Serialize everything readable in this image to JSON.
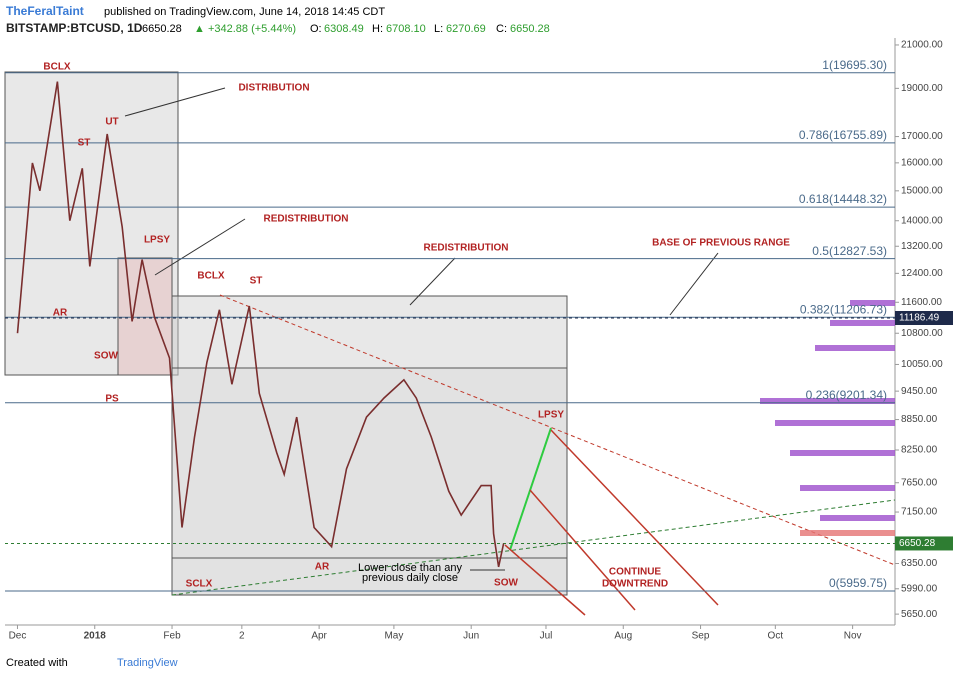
{
  "header": {
    "author": "TheFeralTaint",
    "published": "published on TradingView.com, June 14, 2018 14:45 CDT",
    "symbol": "BITSTAMP:BTCUSD, 1D",
    "last": "6650.28",
    "change": "▲ +342.88 (+5.44%)",
    "o_label": "O:",
    "open": "6308.49",
    "h_label": "H:",
    "high": "6708.10",
    "l_label": "L:",
    "low": "6270.69",
    "c_label": "C:",
    "close": "6650.28"
  },
  "footer": {
    "created": "Created with",
    "brand": "TradingView"
  },
  "chart_data": {
    "type": "line",
    "log_scale": true,
    "xlim": [
      "2017-11-26",
      "2018-11-18"
    ],
    "ylim": [
      5510,
      21340
    ],
    "xticks": [
      {
        "value": "2017-12-01",
        "label": "Dec"
      },
      {
        "value": "2018-01-01",
        "label": "2018"
      },
      {
        "value": "2018-02-01",
        "label": "Feb"
      },
      {
        "value": "2018-03-01",
        "label": "2"
      },
      {
        "value": "2018-04-01",
        "label": "Apr"
      },
      {
        "value": "2018-05-01",
        "label": "May"
      },
      {
        "value": "2018-06-01",
        "label": "Jun"
      },
      {
        "value": "2018-07-01",
        "label": "Jul"
      },
      {
        "value": "2018-08-01",
        "label": "Aug"
      },
      {
        "value": "2018-09-01",
        "label": "Sep"
      },
      {
        "value": "2018-10-01",
        "label": "Oct"
      },
      {
        "value": "2018-11-01",
        "label": "Nov"
      }
    ],
    "yticks": [
      {
        "value": 21000,
        "label": "21000.00"
      },
      {
        "value": 19000,
        "label": "19000.00"
      },
      {
        "value": 17000,
        "label": "17000.00"
      },
      {
        "value": 16000,
        "label": "16000.00"
      },
      {
        "value": 15000,
        "label": "15000.00"
      },
      {
        "value": 14000,
        "label": "14000.00"
      },
      {
        "value": 13200,
        "label": "13200.00"
      },
      {
        "value": 12400,
        "label": "12400.00"
      },
      {
        "value": 11600,
        "label": "11600.00"
      },
      {
        "value": 10800,
        "label": "10800.00"
      },
      {
        "value": 10050,
        "label": "10050.00"
      },
      {
        "value": 9450,
        "label": "9450.00"
      },
      {
        "value": 8850,
        "label": "8850.00"
      },
      {
        "value": 8250,
        "label": "8250.00"
      },
      {
        "value": 7650,
        "label": "7650.00"
      },
      {
        "value": 7150,
        "label": "7150.00"
      },
      {
        "value": 6350,
        "label": "6350.00"
      },
      {
        "value": 5990,
        "label": "5990.00"
      },
      {
        "value": 5650,
        "label": "5650.00"
      }
    ],
    "series": [
      {
        "name": "BTCUSD",
        "color": "#7a2e2e",
        "x": [
          "2017-12-01",
          "2017-12-07",
          "2017-12-10",
          "2017-12-17",
          "2017-12-22",
          "2017-12-27",
          "2017-12-30",
          "2018-01-06",
          "2018-01-12",
          "2018-01-16",
          "2018-01-20",
          "2018-01-25",
          "2018-01-31",
          "2018-02-05",
          "2018-02-10",
          "2018-02-15",
          "2018-02-20",
          "2018-02-25",
          "2018-03-04",
          "2018-03-08",
          "2018-03-15",
          "2018-03-18",
          "2018-03-23",
          "2018-03-30",
          "2018-04-06",
          "2018-04-12",
          "2018-04-20",
          "2018-04-27",
          "2018-05-05",
          "2018-05-10",
          "2018-05-16",
          "2018-05-23",
          "2018-05-28",
          "2018-06-05",
          "2018-06-09",
          "2018-06-10",
          "2018-06-12",
          "2018-06-14"
        ],
        "values": [
          10800,
          16000,
          15000,
          19300,
          14000,
          15800,
          12600,
          17100,
          13800,
          11100,
          12800,
          11200,
          10200,
          6900,
          8500,
          10100,
          11400,
          9600,
          11500,
          9400,
          8200,
          7800,
          8900,
          6900,
          6600,
          7900,
          8900,
          9300,
          9700,
          9300,
          8500,
          7500,
          7100,
          7600,
          7600,
          6800,
          6300,
          6650.28
        ]
      }
    ],
    "fib_levels": [
      {
        "label": "1(19695.30)",
        "price": 19695.3
      },
      {
        "label": "0.786(16755.89)",
        "price": 16755.89
      },
      {
        "label": "0.618(14448.32)",
        "price": 14448.32
      },
      {
        "label": "0.5(12827.53)",
        "price": 12827.53
      },
      {
        "label": "0.382(11206.73)",
        "price": 11206.73
      },
      {
        "label": "0.236(9201.34)",
        "price": 9201.34
      },
      {
        "label": "0(5959.75)",
        "price": 5959.75
      }
    ],
    "price_tags": [
      {
        "value": 11186.49,
        "label": "11186.49",
        "color": "#1e2a4a"
      },
      {
        "value": 6650.28,
        "label": "6650.28",
        "color": "#2e7d32"
      }
    ],
    "annotations": [
      "BCLX",
      "UT",
      "ST",
      "DISTRIBUTION",
      "REDISTRIBUTION",
      "LPSY",
      "AR",
      "SOW",
      "PS",
      "BCLX",
      "ST",
      "REDISTRIBUTION",
      "BASE OF PREVIOUS RANGE",
      "LPSY",
      "CONTINUE",
      "DOWNTREND",
      "AR",
      "SOW",
      "SCLX",
      "Lower close than any",
      "previous daily close"
    ]
  }
}
